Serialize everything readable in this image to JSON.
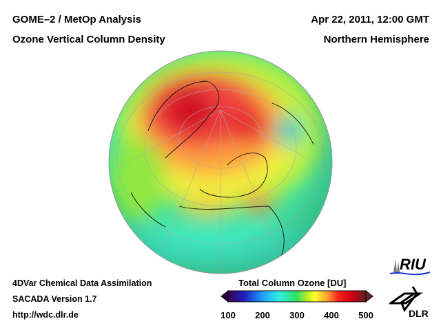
{
  "header": {
    "title_left_1": "GOME–2 / MetOp Analysis",
    "title_left_2": "Ozone Vertical Column Density",
    "title_right_1": "Apr 22, 2011, 12:00 GMT",
    "title_right_2": "Northern Hemisphere"
  },
  "footer": {
    "line1": "4DVar Chemical Data Assimilation",
    "line2": "SACADA Version 1.7",
    "line3": "http://wdc.dlr.de"
  },
  "colorbar": {
    "title": "Total Column Ozone [DU]",
    "ticks": [
      "100",
      "200",
      "300",
      "400",
      "500"
    ],
    "range": [
      100,
      500
    ],
    "colors": [
      "#3a0050",
      "#2020c0",
      "#20a0ff",
      "#30f0e0",
      "#30e060",
      "#c0f020",
      "#ffff30",
      "#ffa030",
      "#ff2020",
      "#d00010",
      "#602020"
    ]
  },
  "logos": {
    "riu": "RIU",
    "dlr": "DLR"
  }
}
